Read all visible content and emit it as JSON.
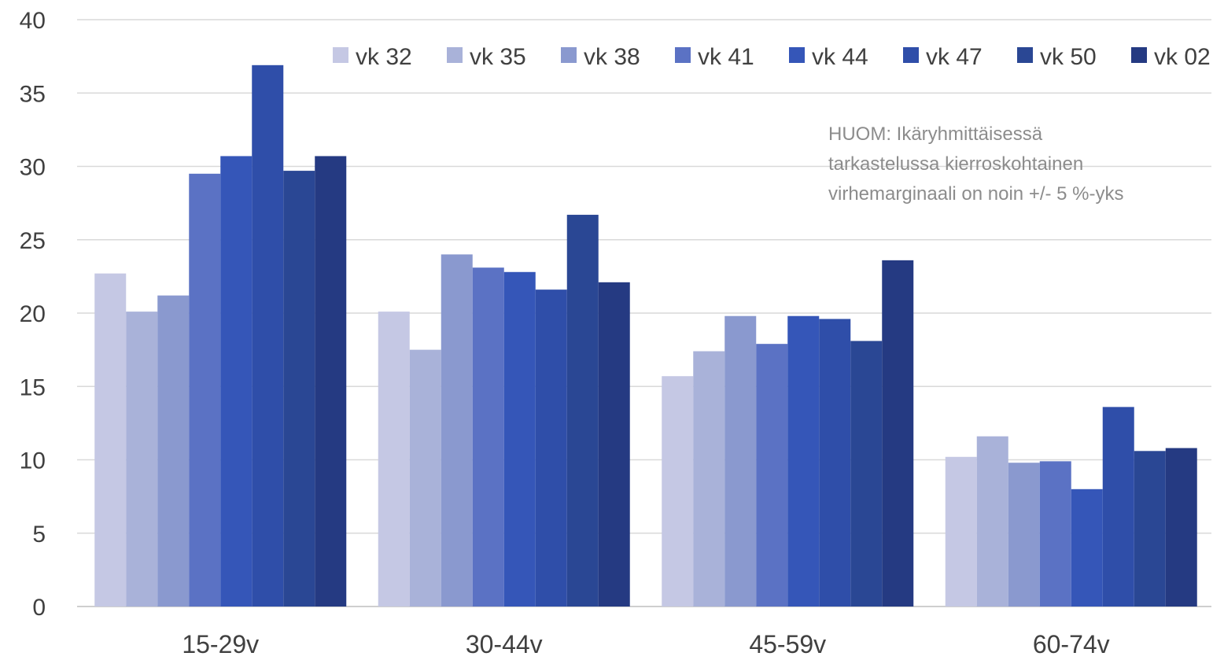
{
  "chart_data": {
    "type": "bar",
    "categories": [
      "15-29v",
      "30-44v",
      "45-59v",
      "60-74v"
    ],
    "series": [
      {
        "name": "vk 32",
        "color": "#c5c8e4",
        "values": [
          22.7,
          20.1,
          15.7,
          10.2
        ]
      },
      {
        "name": "vk 35",
        "color": "#a9b2d9",
        "values": [
          20.1,
          17.5,
          17.4,
          11.6
        ]
      },
      {
        "name": "vk 38",
        "color": "#8a99cf",
        "values": [
          21.2,
          24.0,
          19.8,
          9.8
        ]
      },
      {
        "name": "vk 41",
        "color": "#5b72c4",
        "values": [
          29.5,
          23.1,
          17.9,
          9.9
        ]
      },
      {
        "name": "vk 44",
        "color": "#3556b8",
        "values": [
          30.7,
          22.8,
          19.8,
          8.0
        ]
      },
      {
        "name": "vk 47",
        "color": "#2f4ea9",
        "values": [
          36.9,
          21.6,
          19.6,
          13.6
        ]
      },
      {
        "name": "vk 50",
        "color": "#2a4794",
        "values": [
          29.7,
          26.7,
          18.1,
          10.6
        ]
      },
      {
        "name": "vk 02",
        "color": "#253a82",
        "values": [
          30.7,
          22.1,
          23.6,
          10.8
        ]
      }
    ],
    "ylim": [
      0,
      40
    ],
    "yticks": [
      0,
      5,
      10,
      15,
      20,
      25,
      30,
      35,
      40
    ],
    "grid": true,
    "legend": "top-right"
  },
  "annotation": {
    "lines": [
      "HUOM: Ikäryhmittäisessä",
      "tarkastelussa kierroskohtainen",
      "virhemarginaali on noin +/- 5 %-yks"
    ]
  }
}
